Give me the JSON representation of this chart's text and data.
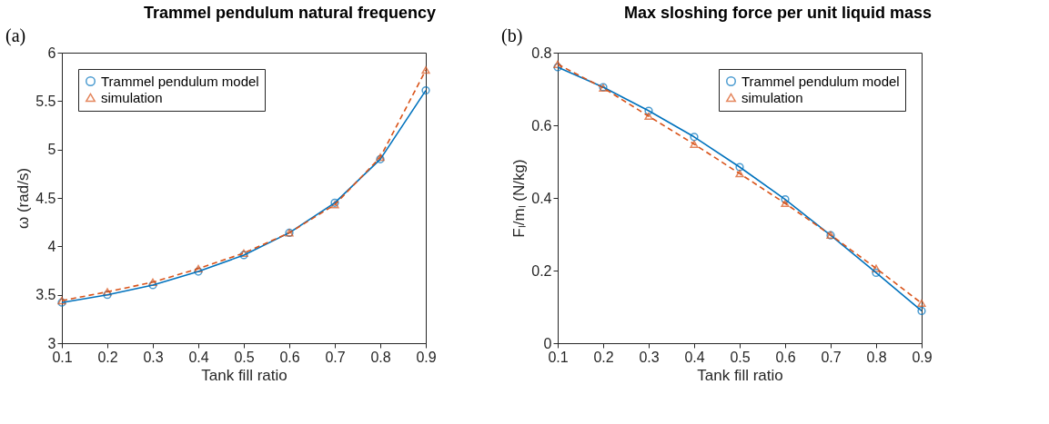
{
  "chart_data": [
    {
      "type": "line",
      "title": "Trammel pendulum natural frequency",
      "xlabel": "Tank fill ratio",
      "ylabel": "ω (rad/s)",
      "annotations": [
        "(a)"
      ],
      "x": [
        0.1,
        0.2,
        0.3,
        0.4,
        0.5,
        0.6,
        0.7,
        0.8,
        0.9
      ],
      "xlim": [
        0.1,
        0.9
      ],
      "xticks": [
        0.1,
        0.2,
        0.3,
        0.4,
        0.5,
        0.6,
        0.7,
        0.8,
        0.9
      ],
      "ylim": [
        3,
        6
      ],
      "yticks": [
        3,
        3.5,
        4,
        4.5,
        5,
        5.5,
        6
      ],
      "grid": false,
      "legend": "top left",
      "series": [
        {
          "name": "Trammel pendulum model",
          "color": "#0072bd",
          "marker": "circle",
          "line_style": "solid",
          "values": [
            3.42,
            3.5,
            3.6,
            3.74,
            3.91,
            4.14,
            4.45,
            4.9,
            5.61
          ]
        },
        {
          "name": "simulation",
          "color": "#d95319",
          "marker": "triangle",
          "line_style": "dashed",
          "values": [
            3.44,
            3.53,
            3.63,
            3.77,
            3.93,
            4.14,
            4.43,
            4.92,
            5.82
          ]
        }
      ]
    },
    {
      "type": "line",
      "title": "Max sloshing force per unit liquid mass",
      "xlabel": "Tank fill ratio",
      "ylabel": "Fₗ/mₗ (N/kg)",
      "annotations": [
        "(b)"
      ],
      "x": [
        0.1,
        0.2,
        0.3,
        0.4,
        0.5,
        0.6,
        0.7,
        0.8,
        0.9
      ],
      "xlim": [
        0.1,
        0.9
      ],
      "xticks": [
        0.1,
        0.2,
        0.3,
        0.4,
        0.5,
        0.6,
        0.7,
        0.8,
        0.9
      ],
      "ylim": [
        0,
        0.8
      ],
      "yticks": [
        0,
        0.2,
        0.4,
        0.6,
        0.8
      ],
      "grid": false,
      "legend": "top right",
      "series": [
        {
          "name": "Trammel pendulum model",
          "color": "#0072bd",
          "marker": "circle",
          "line_style": "solid",
          "values": [
            0.76,
            0.705,
            0.64,
            0.568,
            0.485,
            0.396,
            0.297,
            0.194,
            0.089
          ]
        },
        {
          "name": "simulation",
          "color": "#d95319",
          "marker": "triangle",
          "line_style": "dashed",
          "values": [
            0.768,
            0.703,
            0.625,
            0.548,
            0.467,
            0.385,
            0.298,
            0.206,
            0.11
          ]
        }
      ]
    }
  ]
}
